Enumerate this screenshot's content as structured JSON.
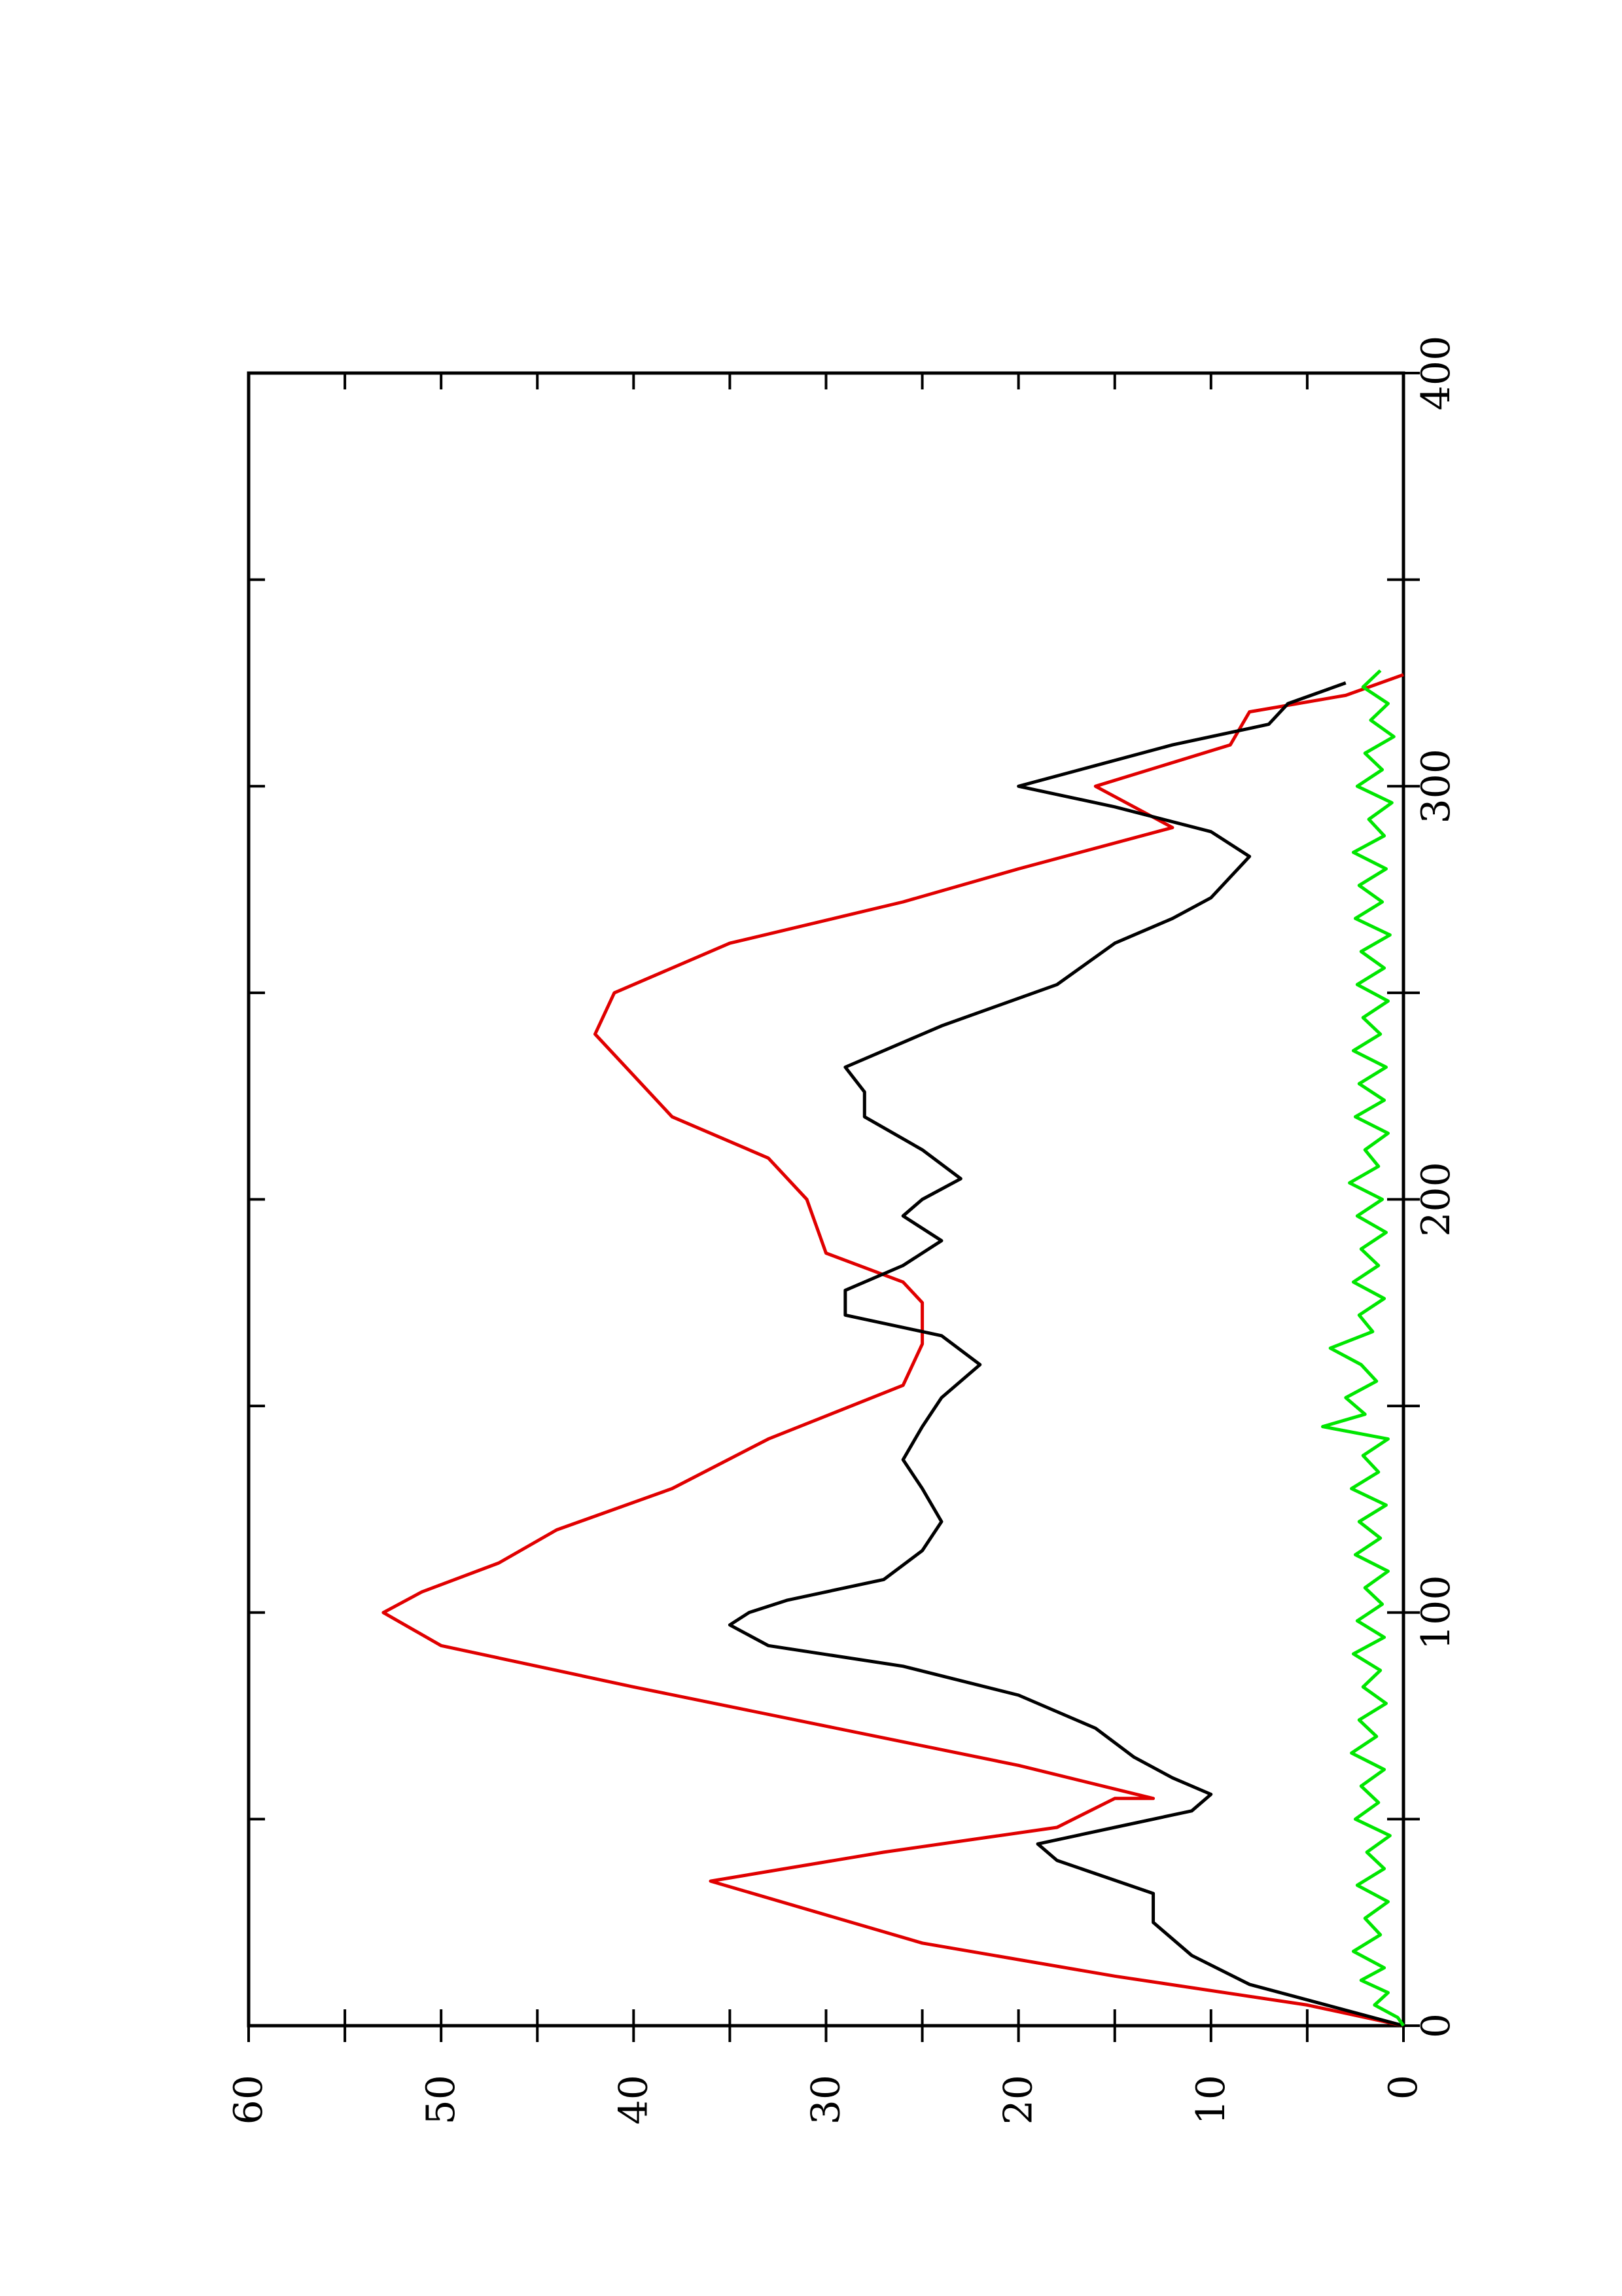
{
  "chart_data": {
    "type": "line",
    "orientation": "rotated-90-ccw",
    "title": "",
    "xlabel": "",
    "ylabel": "",
    "xlim": [
      0,
      400
    ],
    "ylim": [
      0,
      60
    ],
    "x_ticks": [
      0,
      100,
      200,
      300,
      400
    ],
    "x_tick_labels": [
      "0",
      "100",
      "200",
      "300",
      "400"
    ],
    "y_ticks": [
      0,
      10,
      20,
      30,
      40,
      50,
      60
    ],
    "y_tick_labels": [
      "0",
      "10",
      "20",
      "30",
      "40",
      "50",
      "60"
    ],
    "grid": false,
    "legend": "none",
    "series": [
      {
        "color": "#e00000",
        "x": [
          0,
          5,
          12,
          20,
          35,
          42,
          48,
          55,
          55,
          63,
          82,
          92,
          100,
          105,
          112,
          120,
          130,
          142,
          155,
          165,
          175,
          180,
          187,
          200,
          210,
          220,
          230,
          240,
          250,
          262,
          272,
          280,
          290,
          300,
          310,
          318,
          322,
          327
        ],
        "y": [
          0,
          5,
          15,
          25,
          36,
          27,
          18,
          15,
          13,
          20,
          40,
          50,
          53,
          51,
          47,
          44,
          38,
          33,
          26,
          25,
          25,
          26,
          30,
          31,
          33,
          38,
          40,
          42,
          41,
          35,
          26,
          20,
          12,
          16,
          9,
          8,
          3,
          0
        ]
      },
      {
        "color": "#000000",
        "x": [
          0,
          5,
          10,
          17,
          25,
          32,
          40,
          44,
          48,
          52,
          56,
          60,
          65,
          72,
          80,
          87,
          92,
          97,
          100,
          103,
          108,
          115,
          122,
          130,
          137,
          145,
          152,
          160,
          167,
          172,
          178,
          184,
          190,
          196,
          200,
          205,
          212,
          220,
          226,
          232,
          242,
          252,
          262,
          268,
          273,
          278,
          283,
          289,
          295,
          300,
          305,
          310,
          315,
          320,
          325
        ],
        "y": [
          0,
          4,
          8,
          11,
          13,
          13,
          18,
          19,
          15,
          11,
          10,
          12,
          14,
          16,
          20,
          26,
          33,
          35,
          34,
          32,
          27,
          25,
          24,
          25,
          26,
          25,
          24,
          22,
          24,
          29,
          29,
          26,
          24,
          26,
          25,
          23,
          25,
          28,
          28,
          29,
          24,
          18,
          15,
          12,
          10,
          9,
          8,
          10,
          15,
          20,
          16,
          12,
          7,
          6,
          3
        ]
      },
      {
        "color": "#00e600",
        "x": [
          0,
          2,
          5,
          8,
          11,
          14,
          18,
          22,
          26,
          30,
          34,
          38,
          42,
          46,
          50,
          54,
          58,
          62,
          66,
          70,
          74,
          78,
          82,
          86,
          90,
          94,
          98,
          102,
          106,
          110,
          114,
          118,
          122,
          126,
          130,
          134,
          138,
          142,
          145,
          148,
          152,
          156,
          160,
          164,
          168,
          172,
          176,
          180,
          184,
          188,
          192,
          196,
          200,
          204,
          208,
          212,
          216,
          220,
          224,
          228,
          232,
          236,
          240,
          244,
          248,
          252,
          256,
          260,
          264,
          268,
          272,
          276,
          280,
          284,
          288,
          292,
          296,
          300,
          304,
          308,
          312,
          316,
          320,
          324,
          328
        ],
        "y": [
          0,
          0.3,
          1.5,
          0.8,
          2.2,
          1.0,
          2.6,
          1.2,
          2.0,
          0.8,
          2.4,
          1.0,
          1.9,
          0.7,
          2.5,
          1.3,
          2.2,
          1.0,
          2.7,
          1.4,
          2.3,
          0.9,
          2.1,
          1.2,
          2.6,
          1.0,
          2.4,
          1.1,
          2.0,
          0.8,
          2.5,
          1.2,
          2.3,
          0.9,
          2.7,
          1.3,
          2.1,
          0.8,
          4.2,
          2.0,
          3.0,
          1.4,
          2.2,
          3.8,
          1.6,
          2.3,
          1.0,
          2.6,
          1.3,
          2.2,
          0.9,
          2.4,
          1.1,
          2.8,
          1.3,
          2.0,
          0.8,
          2.5,
          1.0,
          2.3,
          0.9,
          2.6,
          1.2,
          2.1,
          0.8,
          2.4,
          1.0,
          2.2,
          0.7,
          2.5,
          1.1,
          2.3,
          0.9,
          2.6,
          1.0,
          1.8,
          0.6,
          2.4,
          1.1,
          2.0,
          0.5,
          1.7,
          0.8,
          2.1,
          1.2
        ]
      }
    ]
  }
}
